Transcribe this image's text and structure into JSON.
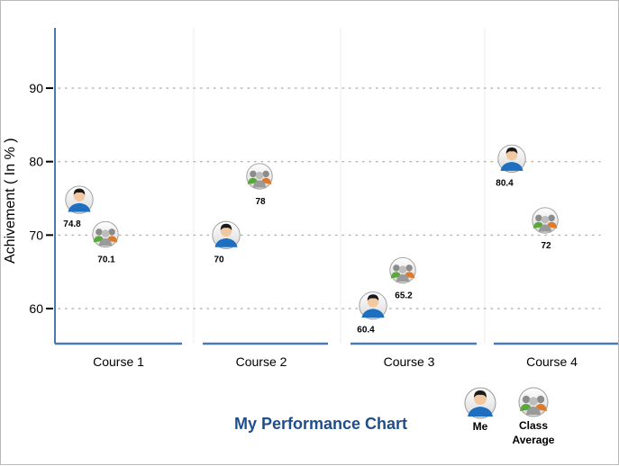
{
  "chart_data": {
    "type": "scatter",
    "title": "My Performance Chart",
    "xlabel": "",
    "ylabel": "Achivement  ( In % )",
    "categories": [
      "Course 1",
      "Course 2",
      "Course 3",
      "Course 4"
    ],
    "ylim": [
      55,
      98
    ],
    "yticks": [
      60,
      70,
      80,
      90
    ],
    "grid": "horizontal-dotted",
    "legend_position": "bottom-right",
    "series": [
      {
        "name": "Me",
        "icon": "single-user-icon",
        "color": "#1e6fbf",
        "values": [
          74.8,
          70,
          60.4,
          80.4
        ],
        "labels": [
          "74.8",
          "70",
          "60.4",
          "80.4"
        ]
      },
      {
        "name": "Class Average",
        "icon": "group-users-icon",
        "color": "#5aa83a",
        "values": [
          70.1,
          78,
          65.2,
          72
        ],
        "labels": [
          "70.1",
          "78",
          "65.2",
          "72"
        ]
      }
    ]
  },
  "legend": {
    "me_label": "Me",
    "avg_label_line1": "Class",
    "avg_label_line2": "Average"
  }
}
